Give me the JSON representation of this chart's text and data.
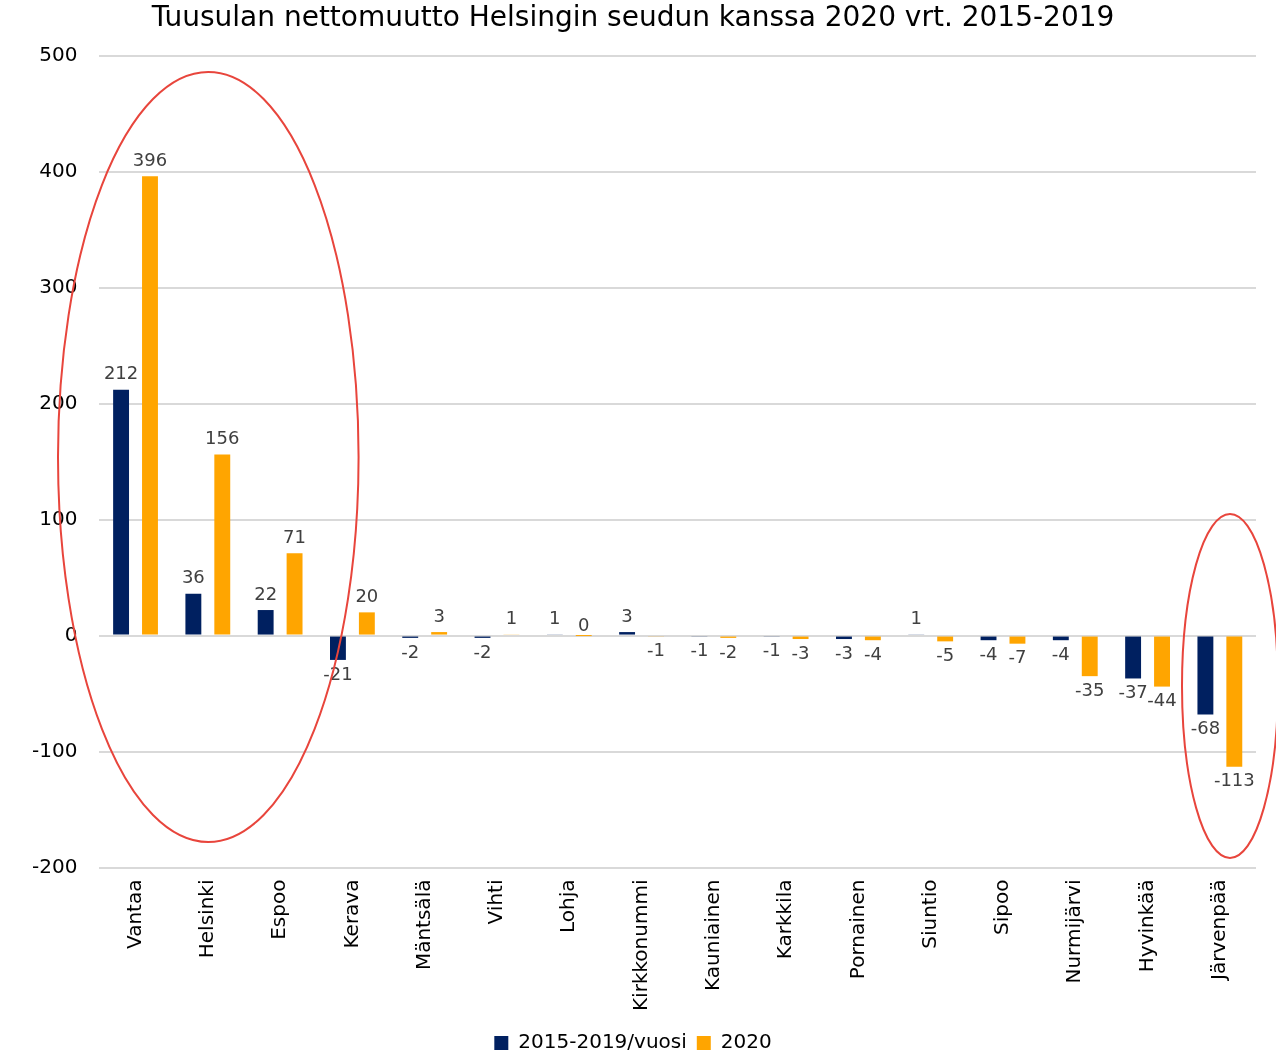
{
  "chart_data": {
    "type": "bar",
    "title": "Tuusulan nettomuutto Helsingin seudun kanssa 2020 vrt. 2015-2019",
    "categories": [
      "Vantaa",
      "Helsinki",
      "Espoo",
      "Kerava",
      "Mäntsälä",
      "Vihti",
      "Lohja",
      "Kirkkonummi",
      "Kauniainen",
      "Karkkila",
      "Pornainen",
      "Siuntio",
      "Sipoo",
      "Nurmijärvi",
      "Hyvinkää",
      "Järvenpää"
    ],
    "series": [
      {
        "name": "2015-2019/vuosi",
        "color": "#002060",
        "values": [
          212,
          36,
          22,
          -21,
          -2,
          -2,
          1,
          3,
          -1,
          -1,
          -3,
          1,
          -4,
          -4,
          -37,
          -68
        ]
      },
      {
        "name": "2020",
        "color": "#ffa500",
        "values": [
          396,
          156,
          71,
          20,
          3,
          1,
          0,
          -1,
          -2,
          -3,
          -4,
          -5,
          -7,
          -35,
          -44,
          -113
        ]
      }
    ],
    "ylim": [
      -200,
      500
    ],
    "yticks": [
      -200,
      -100,
      0,
      100,
      200,
      300,
      400,
      500
    ],
    "grid": "y",
    "legend": "bottom",
    "data_labels": true
  }
}
